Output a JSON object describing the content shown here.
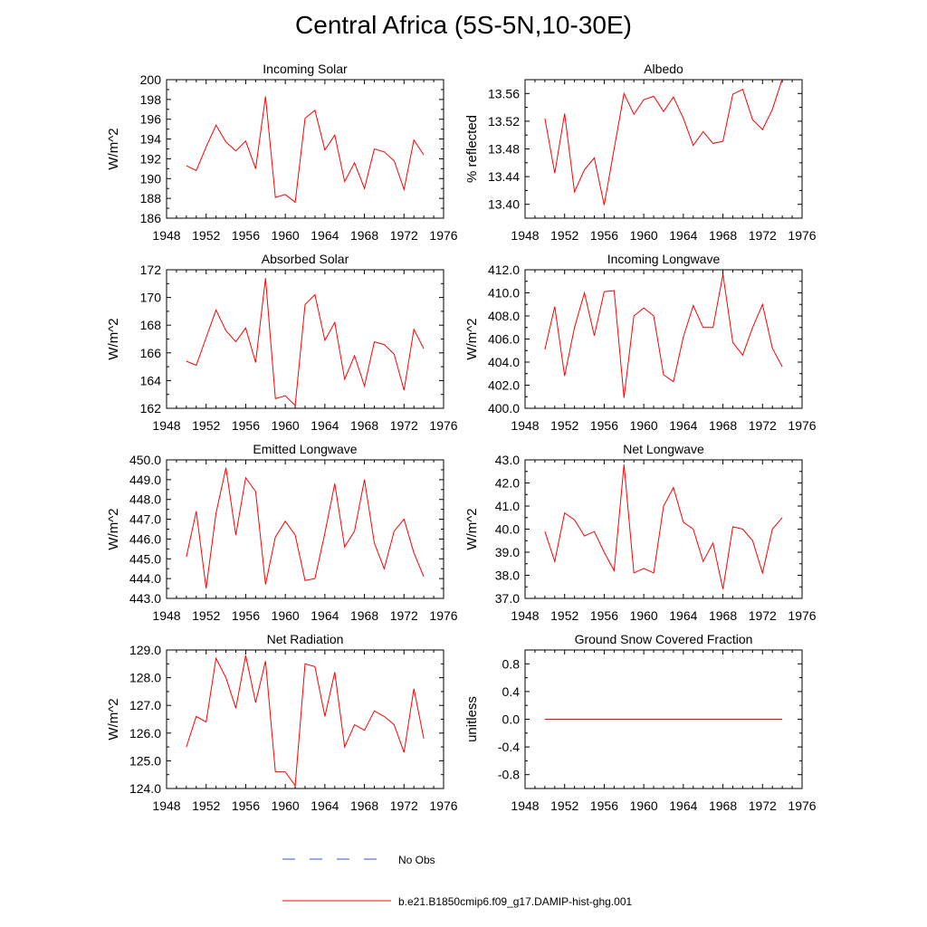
{
  "title": "Central Africa (5S-5N,10-30E)",
  "line_color": "#ff0000",
  "obs_color": "#3355cc",
  "legend": {
    "obs_label": "No Obs",
    "model_label": "b.e21.B1850cmip6.f09_g17.DAMIP-hist-ghg.001"
  },
  "chart_data": [
    {
      "type": "line",
      "title": "Incoming Solar",
      "ylabel": "W/m^2",
      "xlim": [
        1948,
        1976
      ],
      "ylim": [
        186,
        200
      ],
      "xticks": [
        "1948",
        "1952",
        "1956",
        "1960",
        "1964",
        "1968",
        "1972",
        "1976"
      ],
      "yticks": [
        "186",
        "188",
        "190",
        "192",
        "194",
        "196",
        "198",
        "200"
      ],
      "ytick_values": [
        186,
        188,
        190,
        192,
        194,
        196,
        198,
        200
      ],
      "x": [
        1950,
        1951,
        1952,
        1953,
        1954,
        1955,
        1956,
        1957,
        1958,
        1959,
        1960,
        1961,
        1962,
        1963,
        1964,
        1965,
        1966,
        1967,
        1968,
        1969,
        1970,
        1971,
        1972,
        1973,
        1974
      ],
      "values": [
        191.3,
        190.8,
        193.2,
        195.4,
        193.7,
        192.8,
        193.8,
        191.0,
        198.3,
        188.1,
        188.4,
        187.6,
        196.1,
        196.9,
        192.9,
        194.4,
        189.7,
        191.6,
        189.0,
        193.0,
        192.7,
        191.8,
        188.9,
        193.9,
        192.4
      ]
    },
    {
      "type": "line",
      "title": "Albedo",
      "ylabel": "% reflected",
      "xlim": [
        1948,
        1976
      ],
      "ylim": [
        13.38,
        13.58
      ],
      "xticks": [
        "1948",
        "1952",
        "1956",
        "1960",
        "1964",
        "1968",
        "1972",
        "1976"
      ],
      "yticks": [
        "13.40",
        "13.44",
        "13.48",
        "13.52",
        "13.56"
      ],
      "ytick_values": [
        13.4,
        13.44,
        13.48,
        13.52,
        13.56
      ],
      "x": [
        1950,
        1951,
        1952,
        1953,
        1954,
        1955,
        1956,
        1957,
        1958,
        1959,
        1960,
        1961,
        1962,
        1963,
        1964,
        1965,
        1966,
        1967,
        1968,
        1969,
        1970,
        1971,
        1972,
        1973,
        1974
      ],
      "values": [
        13.524,
        13.445,
        13.531,
        13.418,
        13.45,
        13.467,
        13.399,
        13.48,
        13.56,
        13.53,
        13.551,
        13.556,
        13.534,
        13.555,
        13.524,
        13.485,
        13.505,
        13.488,
        13.491,
        13.559,
        13.566,
        13.522,
        13.508,
        13.537,
        13.581
      ]
    },
    {
      "type": "line",
      "title": "Absorbed Solar",
      "ylabel": "W/m^2",
      "xlim": [
        1948,
        1976
      ],
      "ylim": [
        162,
        172
      ],
      "xticks": [
        "1948",
        "1952",
        "1956",
        "1960",
        "1964",
        "1968",
        "1972",
        "1976"
      ],
      "yticks": [
        "162",
        "164",
        "166",
        "168",
        "170",
        "172"
      ],
      "ytick_values": [
        162,
        164,
        166,
        168,
        170,
        172
      ],
      "x": [
        1950,
        1951,
        1952,
        1953,
        1954,
        1955,
        1956,
        1957,
        1958,
        1959,
        1960,
        1961,
        1962,
        1963,
        1964,
        1965,
        1966,
        1967,
        1968,
        1969,
        1970,
        1971,
        1972,
        1973,
        1974
      ],
      "values": [
        165.4,
        165.1,
        167.1,
        169.1,
        167.6,
        166.8,
        167.8,
        165.3,
        171.4,
        162.7,
        162.9,
        162.2,
        169.5,
        170.2,
        166.9,
        168.2,
        164.1,
        165.8,
        163.6,
        166.8,
        166.6,
        165.9,
        163.3,
        167.7,
        166.3
      ]
    },
    {
      "type": "line",
      "title": "Incoming Longwave",
      "ylabel": "W/m^2",
      "xlim": [
        1948,
        1976
      ],
      "ylim": [
        400,
        412
      ],
      "xticks": [
        "1948",
        "1952",
        "1956",
        "1960",
        "1964",
        "1968",
        "1972",
        "1976"
      ],
      "yticks": [
        "400.0",
        "402.0",
        "404.0",
        "406.0",
        "408.0",
        "410.0",
        "412.0"
      ],
      "ytick_values": [
        400,
        402,
        404,
        406,
        408,
        410,
        412
      ],
      "x": [
        1950,
        1951,
        1952,
        1953,
        1954,
        1955,
        1956,
        1957,
        1958,
        1959,
        1960,
        1961,
        1962,
        1963,
        1964,
        1965,
        1966,
        1967,
        1968,
        1969,
        1970,
        1971,
        1972,
        1973,
        1974
      ],
      "values": [
        405.1,
        408.8,
        402.8,
        407.0,
        410.0,
        406.3,
        410.1,
        410.2,
        400.9,
        408.0,
        408.7,
        408.0,
        402.9,
        402.3,
        406.2,
        408.9,
        407.0,
        407.0,
        411.6,
        405.7,
        404.6,
        407.0,
        409.0,
        405.2,
        403.6
      ]
    },
    {
      "type": "line",
      "title": "Emitted Longwave",
      "ylabel": "W/m^2",
      "xlim": [
        1948,
        1976
      ],
      "ylim": [
        443,
        450
      ],
      "xticks": [
        "1948",
        "1952",
        "1956",
        "1960",
        "1964",
        "1968",
        "1972",
        "1976"
      ],
      "yticks": [
        "443.0",
        "444.0",
        "445.0",
        "446.0",
        "447.0",
        "448.0",
        "449.0",
        "450.0"
      ],
      "ytick_values": [
        443,
        444,
        445,
        446,
        447,
        448,
        449,
        450
      ],
      "x": [
        1950,
        1951,
        1952,
        1953,
        1954,
        1955,
        1956,
        1957,
        1958,
        1959,
        1960,
        1961,
        1962,
        1963,
        1964,
        1965,
        1966,
        1967,
        1968,
        1969,
        1970,
        1971,
        1972,
        1973,
        1974
      ],
      "values": [
        445.1,
        447.4,
        443.5,
        447.3,
        449.6,
        446.2,
        449.1,
        448.4,
        443.7,
        446.1,
        446.9,
        446.2,
        443.9,
        444.0,
        446.3,
        448.8,
        445.6,
        446.4,
        449.0,
        445.8,
        444.5,
        446.4,
        447.0,
        445.3,
        444.1
      ]
    },
    {
      "type": "line",
      "title": "Net Longwave",
      "ylabel": "W/m^2",
      "xlim": [
        1948,
        1976
      ],
      "ylim": [
        37,
        43
      ],
      "xticks": [
        "1948",
        "1952",
        "1956",
        "1960",
        "1964",
        "1968",
        "1972",
        "1976"
      ],
      "yticks": [
        "37.0",
        "38.0",
        "39.0",
        "40.0",
        "41.0",
        "42.0",
        "43.0"
      ],
      "ytick_values": [
        37,
        38,
        39,
        40,
        41,
        42,
        43
      ],
      "x": [
        1950,
        1951,
        1952,
        1953,
        1954,
        1955,
        1956,
        1957,
        1958,
        1959,
        1960,
        1961,
        1962,
        1963,
        1964,
        1965,
        1966,
        1967,
        1968,
        1969,
        1970,
        1971,
        1972,
        1973,
        1974
      ],
      "values": [
        39.9,
        38.6,
        40.7,
        40.4,
        39.7,
        39.9,
        39.0,
        38.2,
        42.8,
        38.1,
        38.3,
        38.1,
        41.0,
        41.8,
        40.3,
        40.0,
        38.6,
        39.4,
        37.4,
        40.1,
        40.0,
        39.5,
        38.1,
        40.0,
        40.5
      ]
    },
    {
      "type": "line",
      "title": "Net Radiation",
      "ylabel": "W/m^2",
      "xlim": [
        1948,
        1976
      ],
      "ylim": [
        124,
        129
      ],
      "xticks": [
        "1948",
        "1952",
        "1956",
        "1960",
        "1964",
        "1968",
        "1972",
        "1976"
      ],
      "yticks": [
        "124.0",
        "125.0",
        "126.0",
        "127.0",
        "128.0",
        "129.0"
      ],
      "ytick_values": [
        124,
        125,
        126,
        127,
        128,
        129
      ],
      "x": [
        1950,
        1951,
        1952,
        1953,
        1954,
        1955,
        1956,
        1957,
        1958,
        1959,
        1960,
        1961,
        1962,
        1963,
        1964,
        1965,
        1966,
        1967,
        1968,
        1969,
        1970,
        1971,
        1972,
        1973,
        1974
      ],
      "values": [
        125.5,
        126.6,
        126.4,
        128.7,
        128.0,
        126.9,
        128.8,
        127.1,
        128.6,
        124.6,
        124.6,
        124.1,
        128.5,
        128.4,
        126.6,
        128.2,
        125.5,
        126.3,
        126.1,
        126.8,
        126.6,
        126.3,
        125.3,
        127.6,
        125.8
      ]
    },
    {
      "type": "line",
      "title": "Ground Snow Covered Fraction",
      "ylabel": "unitless",
      "xlim": [
        1948,
        1976
      ],
      "ylim": [
        -1,
        1
      ],
      "xticks": [
        "1948",
        "1952",
        "1956",
        "1960",
        "1964",
        "1968",
        "1972",
        "1976"
      ],
      "yticks": [
        "-0.8",
        "-0.4",
        "0.0",
        "0.4",
        "0.8"
      ],
      "ytick_values": [
        -0.8,
        -0.4,
        0,
        0.4,
        0.8
      ],
      "x": [
        1950,
        1951,
        1952,
        1953,
        1954,
        1955,
        1956,
        1957,
        1958,
        1959,
        1960,
        1961,
        1962,
        1963,
        1964,
        1965,
        1966,
        1967,
        1968,
        1969,
        1970,
        1971,
        1972,
        1973,
        1974
      ],
      "values": [
        0,
        0,
        0,
        0,
        0,
        0,
        0,
        0,
        0,
        0,
        0,
        0,
        0,
        0,
        0,
        0,
        0,
        0,
        0,
        0,
        0,
        0,
        0,
        0,
        0
      ]
    }
  ]
}
